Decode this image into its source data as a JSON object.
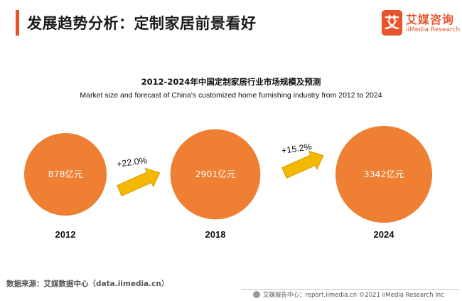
{
  "header": {
    "title": "发展趋势分析：定制家居前景看好"
  },
  "logo": {
    "mark": "艾",
    "name_cn": "艾媒咨询",
    "name_en": "iiMedia Research"
  },
  "chart_data": {
    "type": "bubble",
    "title": "2012-2024年中国定制家居行业市场规模及预测",
    "subtitle": "Market size and forecast of China's customized home furnishing industry from 2012 to 2024",
    "unit": "亿元",
    "categories": [
      "2012",
      "2018",
      "2024"
    ],
    "values": [
      878,
      2901,
      3342
    ],
    "value_labels": [
      "878亿元",
      "2901亿元",
      "3342亿元"
    ],
    "growth": [
      {
        "from": "2012",
        "to": "2018",
        "label": "+22.0%"
      },
      {
        "from": "2018",
        "to": "2024",
        "label": "+15.2%"
      }
    ],
    "colors": {
      "bubble": "#ee7f33",
      "arrow": "#f5b800",
      "arrow_stroke": "#d89a00"
    }
  },
  "source": "数据来源：艾媒数据中心（data.iimedia.cn）",
  "footer": "艾媒报告中心：report.iimedia.cn  ©2021  iiMedia Research  Inc",
  "colors": {
    "accent": "#e8542b"
  }
}
